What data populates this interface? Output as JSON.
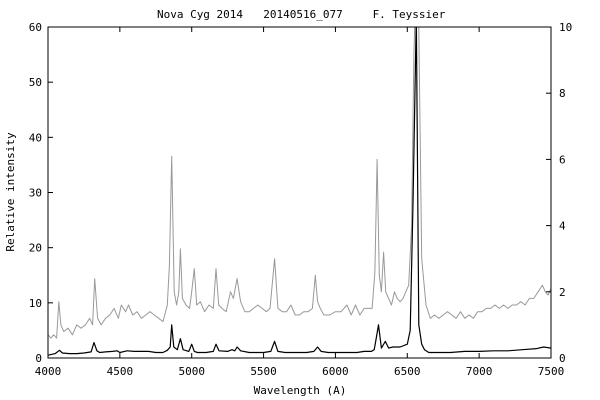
{
  "chart_data": {
    "type": "line",
    "title_parts": [
      "Nova Cyg 2014",
      "20140516_077",
      "F. Teyssier"
    ],
    "xlabel": "Wavelength (A)",
    "ylabel": "Relative intensity",
    "xlim": [
      4000,
      7500
    ],
    "ylim_left": [
      0,
      60
    ],
    "ylim_right": [
      0,
      10
    ],
    "xticks": [
      4000,
      4500,
      5000,
      5500,
      6000,
      6500,
      7000,
      7500
    ],
    "yticks_left": [
      0,
      10,
      20,
      30,
      40,
      50,
      60
    ],
    "yticks_right": [
      0,
      2,
      4,
      6,
      8,
      10
    ],
    "grid": false,
    "series": [
      {
        "axis": "left",
        "color": "#000000",
        "x": [
          4000,
          4050,
          4080,
          4100,
          4150,
          4200,
          4250,
          4300,
          4320,
          4340,
          4360,
          4400,
          4450,
          4480,
          4500,
          4550,
          4600,
          4650,
          4700,
          4750,
          4800,
          4830,
          4850,
          4861,
          4875,
          4900,
          4921,
          4940,
          4980,
          5000,
          5018,
          5040,
          5100,
          5150,
          5169,
          5190,
          5250,
          5280,
          5300,
          5316,
          5340,
          5400,
          5450,
          5500,
          5550,
          5577,
          5600,
          5650,
          5700,
          5750,
          5800,
          5850,
          5876,
          5900,
          5950,
          6000,
          6050,
          6100,
          6150,
          6200,
          6250,
          6270,
          6280,
          6300,
          6320,
          6347,
          6371,
          6400,
          6450,
          6500,
          6520,
          6540,
          6563,
          6580,
          6600,
          6620,
          6650,
          6700,
          6800,
          6900,
          7000,
          7100,
          7200,
          7300,
          7400,
          7450,
          7500
        ],
        "values": [
          0.5,
          0.8,
          1.4,
          0.9,
          0.8,
          0.8,
          0.9,
          1.1,
          2.8,
          1.3,
          1.0,
          1.1,
          1.2,
          1.3,
          1.0,
          1.3,
          1.2,
          1.2,
          1.2,
          1.0,
          1.0,
          1.4,
          2.0,
          6.0,
          2.0,
          1.5,
          3.5,
          1.5,
          1.2,
          2.5,
          1.2,
          1.0,
          1.0,
          1.2,
          2.5,
          1.3,
          1.2,
          1.5,
          1.3,
          2.0,
          1.3,
          1.0,
          1.0,
          1.0,
          1.2,
          3.0,
          1.2,
          1.0,
          1.0,
          1.0,
          1.0,
          1.2,
          2.0,
          1.2,
          1.0,
          1.0,
          1.0,
          1.0,
          1.0,
          1.2,
          1.2,
          1.5,
          3.0,
          6.0,
          1.8,
          3.0,
          1.8,
          2.0,
          2.0,
          2.5,
          5.0,
          28,
          62,
          6.0,
          2.5,
          1.5,
          1.0,
          1.0,
          1.0,
          1.2,
          1.2,
          1.3,
          1.3,
          1.5,
          1.7,
          2.0,
          1.8
        ]
      },
      {
        "axis": "right",
        "color": "#999999",
        "x": [
          4000,
          4020,
          4040,
          4060,
          4075,
          4090,
          4110,
          4140,
          4170,
          4200,
          4230,
          4260,
          4290,
          4310,
          4325,
          4345,
          4370,
          4400,
          4430,
          4460,
          4490,
          4510,
          4540,
          4560,
          4590,
          4620,
          4650,
          4680,
          4710,
          4740,
          4770,
          4800,
          4830,
          4845,
          4861,
          4878,
          4895,
          4910,
          4921,
          4935,
          4960,
          4985,
          5000,
          5018,
          5035,
          5060,
          5090,
          5120,
          5150,
          5169,
          5188,
          5210,
          5240,
          5270,
          5290,
          5316,
          5340,
          5370,
          5400,
          5430,
          5460,
          5490,
          5520,
          5545,
          5577,
          5600,
          5630,
          5660,
          5690,
          5720,
          5750,
          5780,
          5810,
          5840,
          5860,
          5876,
          5895,
          5920,
          5960,
          6000,
          6040,
          6080,
          6110,
          6140,
          6170,
          6200,
          6230,
          6255,
          6275,
          6290,
          6305,
          6320,
          6335,
          6350,
          6370,
          6390,
          6410,
          6430,
          6450,
          6470,
          6490,
          6510,
          6530,
          6545,
          6563,
          6580,
          6600,
          6630,
          6660,
          6690,
          6720,
          6750,
          6780,
          6810,
          6840,
          6870,
          6900,
          6930,
          6960,
          6990,
          7020,
          7050,
          7080,
          7110,
          7140,
          7170,
          7200,
          7230,
          7260,
          7290,
          7320,
          7350,
          7380,
          7410,
          7440,
          7460,
          7480,
          7500
        ],
        "values": [
          0.7,
          0.6,
          0.7,
          0.6,
          1.7,
          1.0,
          0.8,
          0.9,
          0.7,
          1.0,
          0.9,
          1.0,
          1.2,
          1.0,
          2.4,
          1.2,
          1.0,
          1.2,
          1.3,
          1.5,
          1.2,
          1.6,
          1.4,
          1.6,
          1.3,
          1.4,
          1.2,
          1.3,
          1.4,
          1.3,
          1.2,
          1.1,
          1.6,
          2.8,
          6.1,
          2.0,
          1.6,
          2.0,
          3.3,
          1.8,
          1.6,
          1.5,
          2.0,
          2.7,
          1.6,
          1.7,
          1.4,
          1.6,
          1.5,
          2.7,
          1.6,
          1.5,
          1.4,
          2.0,
          1.8,
          2.4,
          1.7,
          1.4,
          1.4,
          1.5,
          1.6,
          1.5,
          1.4,
          1.5,
          3.0,
          1.5,
          1.4,
          1.4,
          1.6,
          1.3,
          1.3,
          1.4,
          1.4,
          1.5,
          2.5,
          1.7,
          1.5,
          1.3,
          1.3,
          1.4,
          1.4,
          1.6,
          1.3,
          1.6,
          1.3,
          1.5,
          1.5,
          1.5,
          2.6,
          6.0,
          2.5,
          2.0,
          3.2,
          2.0,
          1.8,
          1.6,
          2.0,
          1.8,
          1.7,
          1.8,
          2.0,
          2.2,
          4.0,
          9.0,
          12,
          10,
          3.0,
          1.6,
          1.2,
          1.3,
          1.2,
          1.3,
          1.4,
          1.3,
          1.2,
          1.4,
          1.2,
          1.3,
          1.2,
          1.4,
          1.4,
          1.5,
          1.5,
          1.6,
          1.5,
          1.6,
          1.5,
          1.6,
          1.6,
          1.7,
          1.6,
          1.8,
          1.8,
          2.0,
          2.2,
          2.0,
          1.9,
          2.1
        ]
      }
    ]
  }
}
